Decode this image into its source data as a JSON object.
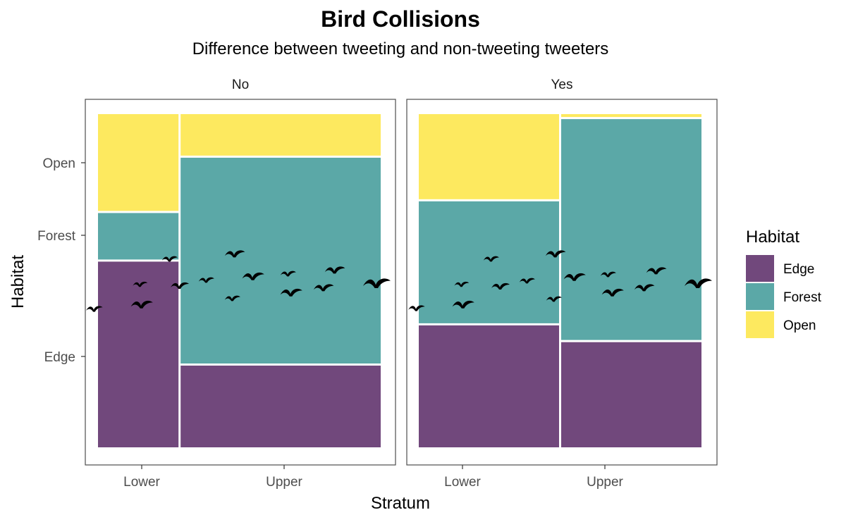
{
  "chart_data": {
    "type": "mosaic",
    "title": "Bird Collisions",
    "subtitle": "Difference between tweeting and non-tweeting tweeters",
    "xlabel": "Stratum",
    "ylabel": "Habitat",
    "facets": [
      "No",
      "Yes"
    ],
    "x_categories": [
      "Lower",
      "Upper"
    ],
    "y_categories": [
      "Edge",
      "Forest",
      "Open"
    ],
    "y_tick_labels": [
      "Open",
      "Forest",
      "Edge"
    ],
    "legend": {
      "title": "Habitat",
      "position": "right",
      "entries": [
        {
          "label": "Edge",
          "color": "#71487c"
        },
        {
          "label": "Forest",
          "color": "#5ba8a7"
        },
        {
          "label": "Open",
          "color": "#fde95f"
        }
      ]
    },
    "panels": [
      {
        "facet": "No",
        "columns": [
          {
            "stratum": "Lower",
            "width_share": 0.29,
            "habitat_shares": {
              "Edge": 0.56,
              "Forest": 0.145,
              "Open": 0.295
            }
          },
          {
            "stratum": "Upper",
            "width_share": 0.71,
            "habitat_shares": {
              "Edge": 0.25,
              "Forest": 0.62,
              "Open": 0.13
            }
          }
        ]
      },
      {
        "facet": "Yes",
        "columns": [
          {
            "stratum": "Lower",
            "width_share": 0.5,
            "habitat_shares": {
              "Edge": 0.37,
              "Forest": 0.37,
              "Open": 0.26
            }
          },
          {
            "stratum": "Upper",
            "width_share": 0.5,
            "habitat_shares": {
              "Edge": 0.32,
              "Forest": 0.665,
              "Open": 0.015
            }
          }
        ]
      }
    ],
    "grid": false,
    "decoration": "bird silhouettes flying across the panels"
  }
}
